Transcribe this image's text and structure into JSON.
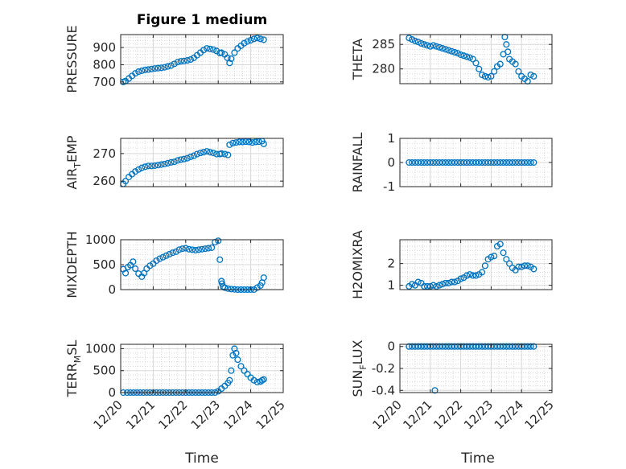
{
  "figure_title": "Figure 1 medium",
  "xlabel": "Time",
  "x_tick_labels": [
    "12/20",
    "12/21",
    "12/22",
    "12/23",
    "12/24",
    "12/25"
  ],
  "colors": {
    "marker": "#0072BD",
    "axis": "#262626",
    "grid": "#cfcfcf",
    "background": "#ffffff"
  },
  "chart_data": [
    {
      "type": "scatter",
      "column": "left",
      "row": 0,
      "title": "Figure 1 medium",
      "ylabel": {
        "main": "PRESSURE",
        "sub": ""
      },
      "xlim": [
        0,
        5
      ],
      "ylim": [
        690,
        975
      ],
      "yticks": [
        700,
        800,
        900
      ],
      "ytick_labels": [
        "700",
        "800",
        "900"
      ],
      "x_tick_labels_visible": false,
      "x": [
        0.08,
        0.15,
        0.25,
        0.35,
        0.45,
        0.55,
        0.65,
        0.75,
        0.85,
        0.95,
        1.05,
        1.15,
        1.25,
        1.35,
        1.45,
        1.55,
        1.65,
        1.75,
        1.85,
        1.95,
        2.05,
        2.15,
        2.25,
        2.35,
        2.45,
        2.55,
        2.65,
        2.75,
        2.85,
        2.95,
        3.05,
        3.1,
        3.2,
        3.28,
        3.35,
        3.4,
        3.5,
        3.6,
        3.7,
        3.8,
        3.9,
        4.0,
        4.1,
        4.2,
        4.3,
        4.4
      ],
      "values": [
        700,
        705,
        720,
        735,
        750,
        760,
        765,
        770,
        772,
        775,
        778,
        780,
        782,
        785,
        790,
        795,
        805,
        815,
        820,
        822,
        825,
        830,
        840,
        855,
        870,
        885,
        895,
        892,
        888,
        880,
        868,
        870,
        860,
        840,
        810,
        835,
        870,
        895,
        910,
        925,
        935,
        942,
        950,
        955,
        950,
        945
      ],
      "grid": true
    },
    {
      "type": "scatter",
      "column": "right",
      "row": 0,
      "ylabel": {
        "main": "THETA",
        "sub": ""
      },
      "xlim": [
        0,
        5
      ],
      "ylim": [
        277,
        287
      ],
      "yticks": [
        280,
        285
      ],
      "ytick_labels": [
        "280",
        "285"
      ],
      "x_tick_labels_visible": false,
      "x": [
        0.3,
        0.4,
        0.5,
        0.6,
        0.7,
        0.8,
        0.9,
        1.0,
        1.1,
        1.2,
        1.3,
        1.4,
        1.5,
        1.6,
        1.7,
        1.8,
        1.9,
        2.0,
        2.1,
        2.2,
        2.3,
        2.4,
        2.5,
        2.6,
        2.7,
        2.8,
        2.9,
        3.0,
        3.1,
        3.2,
        3.3,
        3.4,
        3.45,
        3.5,
        3.55,
        3.6,
        3.7,
        3.8,
        3.9,
        4.0,
        4.1,
        4.2,
        4.3,
        4.4
      ],
      "values": [
        286.3,
        286,
        285.7,
        285.5,
        285.2,
        285,
        284.8,
        284.6,
        284.8,
        284.6,
        284.4,
        284.2,
        284,
        283.8,
        283.6,
        283.4,
        283.2,
        282.9,
        282.7,
        282.5,
        282.3,
        282,
        281.2,
        280,
        278.8,
        278.5,
        278.3,
        278.5,
        279.5,
        280.5,
        281,
        283,
        286.5,
        285,
        283.5,
        282,
        281.5,
        281,
        279.5,
        278.5,
        278,
        277.5,
        278.8,
        278.5
      ],
      "grid": true
    },
    {
      "type": "scatter",
      "column": "left",
      "row": 1,
      "ylabel": {
        "main": "AIR",
        "sub": "T",
        "tail": "EMP"
      },
      "xlim": [
        0,
        5
      ],
      "ylim": [
        258,
        275.5
      ],
      "yticks": [
        260,
        270
      ],
      "ytick_labels": [
        "260",
        "270"
      ],
      "x_tick_labels_visible": false,
      "x": [
        0.08,
        0.15,
        0.25,
        0.35,
        0.45,
        0.55,
        0.65,
        0.75,
        0.85,
        0.95,
        1.05,
        1.15,
        1.25,
        1.35,
        1.45,
        1.55,
        1.65,
        1.75,
        1.85,
        1.95,
        2.05,
        2.15,
        2.25,
        2.35,
        2.45,
        2.55,
        2.65,
        2.75,
        2.85,
        2.95,
        3.05,
        3.1,
        3.2,
        3.3,
        3.35,
        3.45,
        3.55,
        3.65,
        3.75,
        3.85,
        3.95,
        4.05,
        4.15,
        4.25,
        4.35,
        4.4
      ],
      "values": [
        259,
        260,
        261.5,
        262.5,
        263.5,
        264.2,
        264.8,
        265.2,
        265.5,
        265.5,
        265.6,
        265.8,
        266,
        266.2,
        266.5,
        266.8,
        267,
        267.5,
        267.8,
        268,
        268.3,
        268.8,
        269.2,
        269.8,
        270.2,
        270.5,
        270.8,
        270.5,
        270.2,
        269.8,
        269.8,
        270,
        269.8,
        269.5,
        273.2,
        273.8,
        274,
        274.2,
        274.2,
        274.3,
        274.2,
        274,
        274.2,
        274.3,
        274.5,
        273.5
      ],
      "grid": true
    },
    {
      "type": "scatter",
      "column": "right",
      "row": 1,
      "ylabel": {
        "main": "RAINFALL",
        "sub": ""
      },
      "xlim": [
        0,
        5
      ],
      "ylim": [
        -1,
        1
      ],
      "yticks": [
        -1,
        0,
        1
      ],
      "ytick_labels": [
        "-1",
        "0",
        "1"
      ],
      "x_tick_labels_visible": false,
      "x": [
        0.3,
        0.4,
        0.5,
        0.6,
        0.7,
        0.8,
        0.9,
        1.0,
        1.1,
        1.2,
        1.3,
        1.4,
        1.5,
        1.6,
        1.7,
        1.8,
        1.9,
        2.0,
        2.1,
        2.2,
        2.3,
        2.4,
        2.5,
        2.6,
        2.7,
        2.8,
        2.9,
        3.0,
        3.1,
        3.2,
        3.3,
        3.4,
        3.5,
        3.6,
        3.7,
        3.8,
        3.9,
        4.0,
        4.1,
        4.2,
        4.3,
        4.4
      ],
      "values": [
        0,
        0,
        0,
        0,
        0,
        0,
        0,
        0,
        0,
        0,
        0,
        0,
        0,
        0,
        0,
        0,
        0,
        0,
        0,
        0,
        0,
        0,
        0,
        0,
        0,
        0,
        0,
        0,
        0,
        0,
        0,
        0,
        0,
        0,
        0,
        0,
        0,
        0,
        0,
        0,
        0,
        0
      ],
      "grid": true
    },
    {
      "type": "scatter",
      "column": "left",
      "row": 2,
      "ylabel": {
        "main": "MIXDEPTH",
        "sub": ""
      },
      "xlim": [
        0,
        5
      ],
      "ylim": [
        0,
        1000
      ],
      "yticks": [
        0,
        500,
        1000
      ],
      "ytick_labels": [
        "0",
        "500",
        "1000"
      ],
      "x_tick_labels_visible": false,
      "x": [
        0.08,
        0.15,
        0.22,
        0.3,
        0.38,
        0.45,
        0.55,
        0.65,
        0.72,
        0.8,
        0.9,
        1.0,
        1.1,
        1.2,
        1.3,
        1.4,
        1.5,
        1.6,
        1.7,
        1.8,
        1.9,
        2.0,
        2.1,
        2.2,
        2.3,
        2.4,
        2.5,
        2.6,
        2.7,
        2.8,
        2.9,
        3.0,
        3.05,
        3.1,
        3.12,
        3.15,
        3.2,
        3.3,
        3.4,
        3.5,
        3.6,
        3.7,
        3.8,
        3.9,
        4.0,
        4.1,
        4.2,
        4.3,
        4.35,
        4.4
      ],
      "values": [
        410,
        330,
        450,
        490,
        560,
        420,
        320,
        260,
        330,
        420,
        480,
        520,
        580,
        620,
        650,
        680,
        710,
        740,
        760,
        800,
        820,
        830,
        810,
        800,
        790,
        800,
        810,
        820,
        830,
        840,
        950,
        980,
        600,
        170,
        120,
        60,
        40,
        20,
        10,
        5,
        0,
        0,
        0,
        0,
        0,
        0,
        40,
        80,
        140,
        240
      ],
      "grid": true
    },
    {
      "type": "scatter",
      "column": "right",
      "row": 2,
      "ylabel": {
        "main": "H2OMIXRA",
        "sub": ""
      },
      "xlim": [
        0,
        5
      ],
      "ylim": [
        0.8,
        3.1
      ],
      "yticks": [
        1,
        2
      ],
      "ytick_labels": [
        "1",
        "2"
      ],
      "x_tick_labels_visible": false,
      "x": [
        0.3,
        0.4,
        0.5,
        0.6,
        0.7,
        0.8,
        0.9,
        1.0,
        1.1,
        1.2,
        1.3,
        1.4,
        1.5,
        1.6,
        1.7,
        1.8,
        1.9,
        2.0,
        2.1,
        2.2,
        2.3,
        2.4,
        2.5,
        2.6,
        2.7,
        2.8,
        2.9,
        3.0,
        3.1,
        3.2,
        3.3,
        3.4,
        3.5,
        3.6,
        3.7,
        3.8,
        3.9,
        4.0,
        4.1,
        4.2,
        4.3,
        4.4
      ],
      "values": [
        0.95,
        1.05,
        1.0,
        1.15,
        1.1,
        0.95,
        0.95,
        0.95,
        1.0,
        0.95,
        1.0,
        1.05,
        1.1,
        1.1,
        1.15,
        1.15,
        1.2,
        1.3,
        1.35,
        1.45,
        1.5,
        1.45,
        1.45,
        1.5,
        1.6,
        1.9,
        2.2,
        2.3,
        2.35,
        2.8,
        2.9,
        2.5,
        2.2,
        2.0,
        1.8,
        1.7,
        1.85,
        1.85,
        1.9,
        1.9,
        1.85,
        1.75
      ],
      "grid": true
    },
    {
      "type": "scatter",
      "column": "left",
      "row": 3,
      "ylabel": {
        "main": "TERR",
        "sub": "M",
        "tail": "SL"
      },
      "xlim": [
        0,
        5
      ],
      "ylim": [
        0,
        1100
      ],
      "yticks": [
        0,
        500,
        1000
      ],
      "ytick_labels": [
        "0",
        "500",
        "1000"
      ],
      "x_tick_labels_visible": true,
      "x": [
        0.08,
        0.2,
        0.3,
        0.4,
        0.5,
        0.6,
        0.7,
        0.8,
        0.9,
        1.0,
        1.1,
        1.2,
        1.3,
        1.4,
        1.5,
        1.6,
        1.7,
        1.8,
        1.9,
        2.0,
        2.1,
        2.2,
        2.3,
        2.4,
        2.5,
        2.6,
        2.7,
        2.8,
        2.9,
        3.0,
        3.1,
        3.2,
        3.3,
        3.35,
        3.4,
        3.45,
        3.5,
        3.55,
        3.6,
        3.7,
        3.8,
        3.9,
        4.0,
        4.1,
        4.2,
        4.3,
        4.35,
        4.4
      ],
      "values": [
        0,
        0,
        0,
        0,
        0,
        0,
        0,
        0,
        0,
        0,
        0,
        0,
        0,
        0,
        0,
        0,
        0,
        0,
        0,
        0,
        0,
        0,
        0,
        0,
        0,
        0,
        0,
        0,
        0,
        30,
        90,
        150,
        220,
        280,
        500,
        850,
        1000,
        900,
        750,
        600,
        500,
        420,
        340,
        280,
        240,
        250,
        280,
        300
      ],
      "grid": true
    },
    {
      "type": "scatter",
      "column": "right",
      "row": 3,
      "ylabel": {
        "main": "SUN",
        "sub": "F",
        "tail": "LUX"
      },
      "xlim": [
        0,
        5
      ],
      "ylim": [
        -0.42,
        0.02
      ],
      "yticks": [
        -0.4,
        -0.2,
        0
      ],
      "ytick_labels": [
        "-0.4",
        "-0.2",
        "0"
      ],
      "x_tick_labels_visible": true,
      "x": [
        0.3,
        0.4,
        0.5,
        0.6,
        0.7,
        0.8,
        0.9,
        1.0,
        1.1,
        1.15,
        1.2,
        1.3,
        1.4,
        1.5,
        1.6,
        1.7,
        1.8,
        1.9,
        2.0,
        2.1,
        2.2,
        2.3,
        2.4,
        2.5,
        2.6,
        2.7,
        2.8,
        2.9,
        3.0,
        3.1,
        3.2,
        3.3,
        3.4,
        3.5,
        3.6,
        3.7,
        3.8,
        3.9,
        4.0,
        4.1,
        4.2,
        4.3,
        4.4
      ],
      "values": [
        0,
        0,
        0,
        0,
        0,
        0,
        0,
        0,
        0,
        -0.4,
        0,
        0,
        0,
        0,
        0,
        0,
        0,
        0,
        0,
        0,
        0,
        0,
        0,
        0,
        0,
        0,
        0,
        0,
        0,
        0,
        0,
        0,
        0,
        0,
        0,
        0,
        0,
        0,
        0,
        0,
        0,
        0,
        0
      ],
      "grid": true
    }
  ]
}
